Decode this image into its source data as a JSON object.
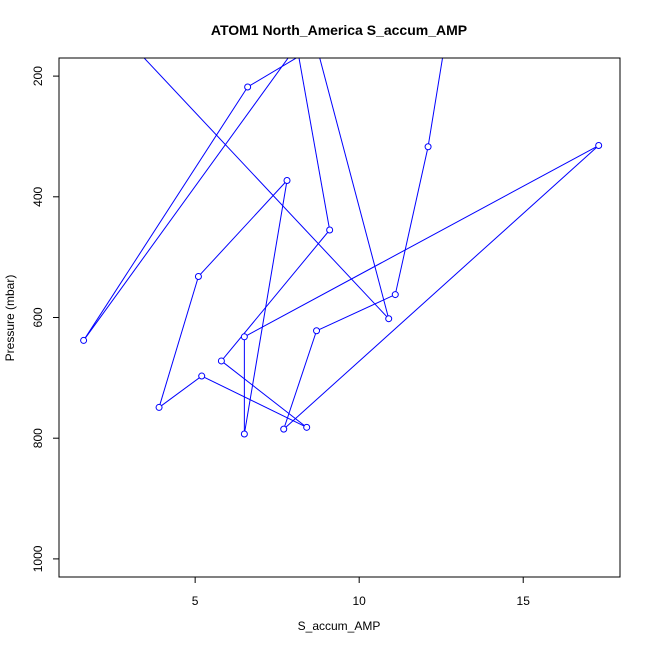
{
  "chart_data": {
    "type": "line",
    "title": "ATOM1 North_America S_accum_AMP",
    "xlabel": "S_accum_AMP",
    "ylabel": "Pressure (mbar)",
    "xlim": [
      0.85,
      17.95
    ],
    "ylim": [
      1030,
      170
    ],
    "y_reversed": true,
    "x_ticks": [
      5,
      10,
      15
    ],
    "y_ticks": [
      200,
      400,
      600,
      800,
      1000
    ],
    "grid": false,
    "legend": "none",
    "series": [
      {
        "color": "#0000ff",
        "marker": "open-circle",
        "points": [
          {
            "x": 12.6,
            "y": 150
          },
          {
            "x": 12.1,
            "y": 317
          },
          {
            "x": 11.1,
            "y": 562
          },
          {
            "x": 8.7,
            "y": 622
          },
          {
            "x": 7.7,
            "y": 785
          },
          {
            "x": 17.3,
            "y": 315
          },
          {
            "x": 6.5,
            "y": 632
          },
          {
            "x": 6.5,
            "y": 793
          },
          {
            "x": 7.8,
            "y": 373
          },
          {
            "x": 5.1,
            "y": 532
          },
          {
            "x": 3.9,
            "y": 749
          },
          {
            "x": 5.2,
            "y": 697
          },
          {
            "x": 8.4,
            "y": 782
          },
          {
            "x": 5.8,
            "y": 672
          },
          {
            "x": 9.1,
            "y": 455
          },
          {
            "x": 8.1,
            "y": 150
          },
          {
            "x": 1.6,
            "y": 638
          },
          {
            "x": 6.6,
            "y": 218
          },
          {
            "x": 8.7,
            "y": 150
          },
          {
            "x": 10.9,
            "y": 602
          },
          {
            "x": 3.1,
            "y": 150
          }
        ],
        "visible_marker_index": [
          1,
          2,
          3,
          4,
          5,
          6,
          7,
          8,
          9,
          10,
          11,
          12,
          13,
          14,
          16,
          17,
          19
        ]
      }
    ]
  }
}
